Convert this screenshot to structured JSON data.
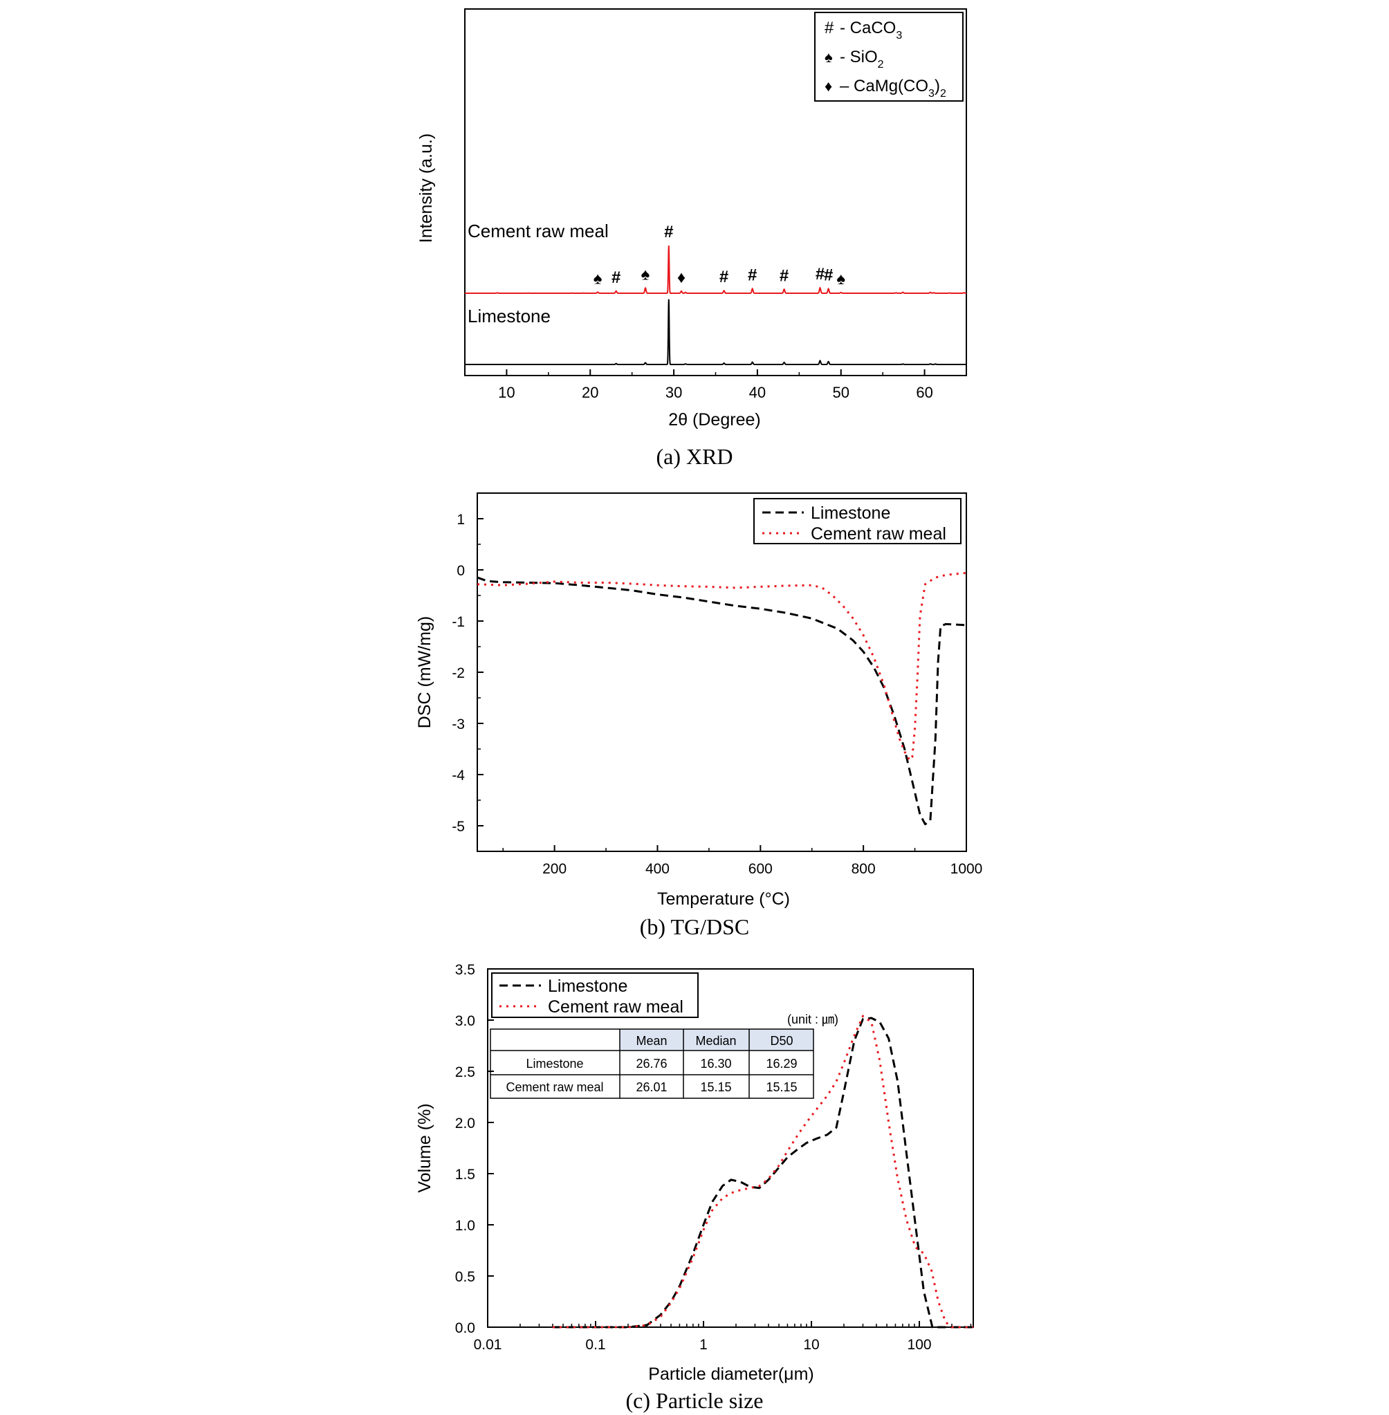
{
  "captions": {
    "a": "(a) XRD",
    "b": "(b) TG/DSC",
    "c": "(c) Particle size"
  },
  "chart_data": [
    {
      "type": "line",
      "ylabel": "Intensity (a.u.)",
      "xlabel": "2θ (Degree)",
      "xlim": [
        5,
        65
      ],
      "xticks": [
        10,
        20,
        30,
        40,
        50,
        60
      ],
      "grid": false,
      "legend": {
        "placement": "top-right",
        "entries": [
          {
            "symbol": "#",
            "text": "- CaCO",
            "sub": "3",
            "tail": ""
          },
          {
            "symbol": "♠",
            "text": "- SiO",
            "sub": "2",
            "tail": ""
          },
          {
            "symbol": "♦",
            "text": "– CaMg(CO",
            "sub": "3",
            "tail": ")",
            "sub2": "2"
          }
        ]
      },
      "series": [
        {
          "name": "Cement raw meal",
          "color": "#e8191e",
          "baseline": 0.86,
          "peaks": [
            [
              8.9,
              0.06
            ],
            [
              12.6,
              0.02
            ],
            [
              17.8,
              0.02
            ],
            [
              19.2,
              0.03
            ],
            [
              20.9,
              0.16
            ],
            [
              23.1,
              0.3
            ],
            [
              26.6,
              0.72
            ],
            [
              29.4,
              6.5
            ],
            [
              30.9,
              0.28
            ],
            [
              31.4,
              0.12
            ],
            [
              36.0,
              0.36
            ],
            [
              39.4,
              0.62
            ],
            [
              43.2,
              0.54
            ],
            [
              47.5,
              0.74
            ],
            [
              48.5,
              0.6
            ],
            [
              50.0,
              0.1
            ],
            [
              56.6,
              0.06
            ],
            [
              57.4,
              0.14
            ],
            [
              60.7,
              0.12
            ],
            [
              61.1,
              0.08
            ],
            [
              63.0,
              0.04
            ],
            [
              64.7,
              0.08
            ]
          ]
        },
        {
          "name": "Limestone",
          "color": "#000000",
          "baseline": 0.0,
          "peaks": [
            [
              23.1,
              0.12
            ],
            [
              26.6,
              0.24
            ],
            [
              29.4,
              8.9
            ],
            [
              31.4,
              0.08
            ],
            [
              36.0,
              0.18
            ],
            [
              39.4,
              0.32
            ],
            [
              43.2,
              0.28
            ],
            [
              47.5,
              0.52
            ],
            [
              48.5,
              0.4
            ],
            [
              57.4,
              0.06
            ],
            [
              60.7,
              0.08
            ],
            [
              61.3,
              0.06
            ]
          ]
        }
      ],
      "annotations": [
        {
          "text": "#",
          "x": 29.4,
          "series": "Cement raw meal"
        },
        {
          "text": "♠",
          "x": 20.9,
          "series": "Cement raw meal"
        },
        {
          "text": "#",
          "x": 23.1,
          "series": "Cement raw meal"
        },
        {
          "text": "♠",
          "x": 26.6,
          "series": "Cement raw meal"
        },
        {
          "text": "♦",
          "x": 30.9,
          "series": "Cement raw meal"
        },
        {
          "text": "#",
          "x": 36.0,
          "series": "Cement raw meal"
        },
        {
          "text": "#",
          "x": 39.4,
          "series": "Cement raw meal"
        },
        {
          "text": "#",
          "x": 43.2,
          "series": "Cement raw meal"
        },
        {
          "text": "#",
          "x": 47.5,
          "series": "Cement raw meal"
        },
        {
          "text": "#",
          "x": 48.5,
          "series": "Cement raw meal"
        },
        {
          "text": "♠",
          "x": 50.0,
          "series": "Cement raw meal"
        }
      ]
    },
    {
      "type": "line",
      "ylabel": "DSC (mW/mg)",
      "xlabel": "Temperature (°C)",
      "xlim": [
        50,
        1000
      ],
      "ylim": [
        -5.5,
        1.5
      ],
      "xticks": [
        200,
        400,
        600,
        800,
        1000
      ],
      "yticks": [
        1,
        0,
        -1,
        -2,
        -3,
        -4,
        -5
      ],
      "grid": false,
      "legend_placement": "top-right",
      "series": [
        {
          "name": "Limestone",
          "style": "dashed",
          "color": "#000000",
          "x": [
            50,
            70,
            100,
            150,
            200,
            250,
            300,
            350,
            400,
            450,
            500,
            550,
            600,
            650,
            700,
            750,
            780,
            800,
            820,
            840,
            860,
            880,
            900,
            910,
            920,
            930,
            940,
            945,
            950,
            960,
            1000
          ],
          "y": [
            -0.15,
            -0.22,
            -0.24,
            -0.25,
            -0.26,
            -0.3,
            -0.35,
            -0.4,
            -0.48,
            -0.54,
            -0.62,
            -0.7,
            -0.76,
            -0.84,
            -0.95,
            -1.15,
            -1.38,
            -1.6,
            -1.9,
            -2.3,
            -2.85,
            -3.5,
            -4.35,
            -4.78,
            -4.97,
            -4.9,
            -3.3,
            -1.8,
            -1.1,
            -1.06,
            -1.08
          ]
        },
        {
          "name": "Cement raw meal",
          "style": "dotted",
          "color": "#e8191e",
          "x": [
            50,
            100,
            150,
            200,
            250,
            300,
            350,
            400,
            450,
            500,
            550,
            600,
            650,
            700,
            720,
            740,
            760,
            780,
            800,
            820,
            840,
            860,
            870,
            880,
            890,
            895,
            900,
            905,
            910,
            920,
            940,
            960,
            980,
            1000
          ],
          "y": [
            -0.28,
            -0.3,
            -0.27,
            -0.23,
            -0.25,
            -0.25,
            -0.27,
            -0.3,
            -0.32,
            -0.33,
            -0.35,
            -0.33,
            -0.31,
            -0.3,
            -0.35,
            -0.5,
            -0.7,
            -0.95,
            -1.28,
            -1.7,
            -2.25,
            -2.95,
            -3.3,
            -3.55,
            -3.72,
            -3.65,
            -3.1,
            -2.1,
            -0.9,
            -0.28,
            -0.15,
            -0.1,
            -0.08,
            -0.06
          ]
        }
      ]
    },
    {
      "type": "line",
      "ylabel": "Volume (%)",
      "xlabel": "Particle diameter(μm)",
      "xscale": "log",
      "xlim": [
        0.01,
        316
      ],
      "ylim": [
        0,
        3.5
      ],
      "xticks": [
        0.01,
        0.1,
        1,
        10,
        100
      ],
      "xtick_labels": [
        "0.01",
        "0.1",
        "1",
        "10",
        "100"
      ],
      "yticks": [
        0.0,
        0.5,
        1.0,
        1.5,
        2.0,
        2.5,
        3.0,
        3.5
      ],
      "ytick_labels": [
        "0.0",
        "0.5",
        "1.0",
        "1.5",
        "2.0",
        "2.5",
        "3.0",
        "3.5"
      ],
      "grid": false,
      "legend_placement": "top-left",
      "series": [
        {
          "name": "Limestone",
          "style": "dashed",
          "color": "#000000",
          "x": [
            0.04,
            0.1,
            0.2,
            0.3,
            0.4,
            0.5,
            0.6,
            0.8,
            1.0,
            1.2,
            1.5,
            1.8,
            2.2,
            2.7,
            3.3,
            4.0,
            5.0,
            6.0,
            7.5,
            9.0,
            11,
            14,
            17,
            20,
            25,
            30,
            36,
            43,
            52,
            63,
            76,
            92,
            110,
            132,
            160,
            200,
            316
          ],
          "y": [
            0,
            0,
            0,
            0.02,
            0.12,
            0.25,
            0.4,
            0.72,
            1.0,
            1.22,
            1.38,
            1.44,
            1.42,
            1.37,
            1.36,
            1.44,
            1.56,
            1.66,
            1.74,
            1.8,
            1.84,
            1.88,
            1.95,
            2.3,
            2.8,
            3.01,
            3.02,
            2.98,
            2.82,
            2.4,
            1.7,
            1.0,
            0.35,
            0.0,
            0,
            0,
            0
          ]
        },
        {
          "name": "Cement raw meal",
          "style": "dotted",
          "color": "#e8191e",
          "x": [
            0.04,
            0.1,
            0.2,
            0.3,
            0.4,
            0.5,
            0.6,
            0.8,
            1.0,
            1.2,
            1.5,
            1.8,
            2.2,
            2.7,
            3.3,
            4.0,
            5.0,
            6.0,
            7.5,
            9.0,
            11,
            14,
            17,
            20,
            25,
            30,
            36,
            43,
            52,
            63,
            76,
            92,
            110,
            130,
            150,
            175,
            200,
            240,
            316
          ],
          "y": [
            0,
            0,
            0,
            0.02,
            0.1,
            0.24,
            0.38,
            0.68,
            0.95,
            1.14,
            1.26,
            1.31,
            1.34,
            1.36,
            1.38,
            1.45,
            1.58,
            1.72,
            1.88,
            2.0,
            2.12,
            2.26,
            2.4,
            2.58,
            2.85,
            3.04,
            2.98,
            2.6,
            2.0,
            1.45,
            1.05,
            0.78,
            0.72,
            0.55,
            0.25,
            0.05,
            0,
            0,
            0
          ]
        }
      ],
      "table": {
        "unit_note": "(unit : ㎛)",
        "header": [
          "",
          "Mean",
          "Median",
          "D50"
        ],
        "rows": [
          [
            "Limestone",
            "26.76",
            "16.30",
            "16.29"
          ],
          [
            "Cement raw meal",
            "26.01",
            "15.15",
            "15.15"
          ]
        ]
      }
    }
  ]
}
